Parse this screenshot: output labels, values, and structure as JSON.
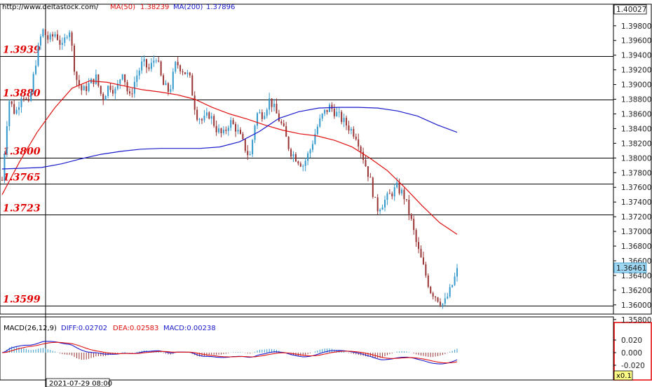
{
  "header": {
    "url": "http://www.deltastock.com/",
    "ma50_label": "MA(50)",
    "ma50_value": "1.38239",
    "ma200_label": "MA(200)",
    "ma200_value": "1.37896"
  },
  "price_axis": {
    "top_value": "1.40027",
    "current_price": "1.36461",
    "ticks": [
      "1.39800",
      "1.39600",
      "1.39400",
      "1.39200",
      "1.39000",
      "1.38800",
      "1.38600",
      "1.38400",
      "1.38200",
      "1.38000",
      "1.37800",
      "1.37600",
      "1.37400",
      "1.37200",
      "1.37000",
      "1.36800",
      "1.36600",
      "1.36400",
      "1.36200",
      "1.36000",
      "1.35800"
    ]
  },
  "levels": [
    "1.3939",
    "1.3880",
    "1.3800",
    "1.3765",
    "1.3723",
    "1.3599"
  ],
  "macd": {
    "title": "MACD(26,12,9)",
    "diff": "DIFF:0.02702",
    "dea": "DEA:0.02583",
    "macd": "MACD:0.00238",
    "ticks": [
      "0.020",
      "0.000",
      "-0.020"
    ]
  },
  "time_label": "2021-07-29 08:00",
  "zoom_label": "x0.1",
  "colors": {
    "bull": "#3399cc",
    "bear": "#993333",
    "ma50": "#e01010",
    "ma200": "#1a1acc",
    "level": "#e00000",
    "macd_pos": "#3399cc",
    "macd_neg": "#993333"
  },
  "chart_data": {
    "type": "candlestick",
    "y_range": [
      1.3572,
      1.4003
    ],
    "levels": [
      1.3939,
      1.388,
      1.38,
      1.3765,
      1.3723,
      1.3599
    ],
    "price_path": [
      1.377,
      1.388,
      1.386,
      1.389,
      1.387,
      1.393,
      1.3975,
      1.396,
      1.397,
      1.395,
      1.398,
      1.391,
      1.389,
      1.39,
      1.391,
      1.388,
      1.39,
      1.389,
      1.392,
      1.388,
      1.391,
      1.393,
      1.392,
      1.394,
      1.39,
      1.389,
      1.393,
      1.392,
      1.391,
      1.386,
      1.385,
      1.386,
      1.384,
      1.383,
      1.385,
      1.384,
      1.382,
      1.38,
      1.386,
      1.386,
      1.388,
      1.386,
      1.384,
      1.381,
      1.38,
      1.379,
      1.381,
      1.384,
      1.386,
      1.387,
      1.386,
      1.385,
      1.384,
      1.383,
      1.38,
      1.377,
      1.373,
      1.374,
      1.375,
      1.376,
      1.375,
      1.372,
      1.368,
      1.365,
      1.362,
      1.361,
      1.36,
      1.362,
      1.3646
    ],
    "ma50": [
      1.375,
      1.3795,
      1.3835,
      1.3868,
      1.3895,
      1.3905,
      1.3903,
      1.3898,
      1.3893,
      1.389,
      1.3886,
      1.388,
      1.3869,
      1.386,
      1.3853,
      1.3845,
      1.3838,
      1.3833,
      1.383,
      1.3824,
      1.3815,
      1.38,
      1.3783,
      1.376,
      1.3735,
      1.3712,
      1.3696
    ],
    "ma200": [
      1.3785,
      1.3786,
      1.3787,
      1.3792,
      1.3799,
      1.3805,
      1.3809,
      1.3812,
      1.3813,
      1.3813,
      1.3813,
      1.3815,
      1.3822,
      1.3836,
      1.3854,
      1.3863,
      1.3868,
      1.3869,
      1.3869,
      1.3868,
      1.3864,
      1.3857,
      1.3845,
      1.3835
    ]
  }
}
